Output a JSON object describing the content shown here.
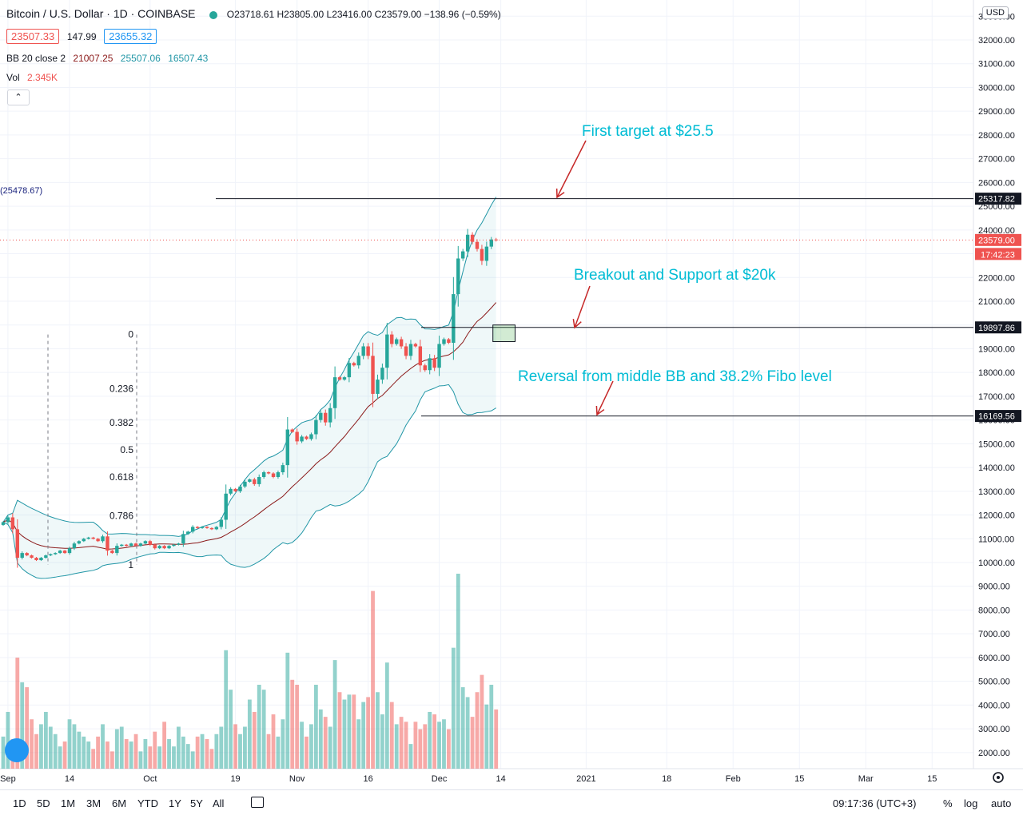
{
  "header": {
    "symbol_title": "Bitcoin / U.S. Dollar · 1D · COINBASE",
    "ohlc": "O23718.61 H23805.00 L23416.00 C23579.00 −138.96 (−0.59%)",
    "bid": "23507.33",
    "spread": "147.99",
    "ask": "23655.32",
    "bb_label": "BB 20 close 2",
    "bb_basis": "21007.25",
    "bb_upper": "25507.06",
    "bb_lower": "16507.43",
    "vol_label": "Vol",
    "vol_value": "2.345K",
    "collapse_icon": "chevron-up-icon",
    "currency_badge": "USD",
    "left_level_label": "(25478.67)"
  },
  "colors": {
    "up": "#26a69a",
    "down": "#ef5350",
    "bb_band": "#2196a6",
    "bb_basis": "#8b1a1a",
    "annotation": "#00bcd4",
    "arrow": "#c62828",
    "axis_text": "#131722"
  },
  "chart_data": {
    "type": "candlestick",
    "title": "Bitcoin / U.S. Dollar · 1D · COINBASE",
    "price_axis": {
      "range": [
        1500,
        33300
      ],
      "ticks": [
        2000,
        3000,
        4000,
        5000,
        6000,
        7000,
        8000,
        9000,
        10000,
        11000,
        12000,
        13000,
        14000,
        15000,
        16000,
        17000,
        18000,
        19000,
        20000,
        21000,
        22000,
        23000,
        24000,
        25000,
        26000,
        27000,
        28000,
        29000,
        30000,
        31000,
        32000,
        33000
      ],
      "tick_labels": [
        "2000.00",
        "3000.00",
        "4000.00",
        "5000.00",
        "6000.00",
        "7000.00",
        "8000.00",
        "9000.00",
        "10000.00",
        "11000.00",
        "12000.00",
        "13000.00",
        "14000.00",
        "15000.00",
        "16000.00",
        "17000.00",
        "18000.00",
        "19000.00",
        "20000.00",
        "21000.00",
        "22000.00",
        "23000.00",
        "24000.00",
        "25000.00",
        "26000.00",
        "27000.00",
        "28000.00",
        "29000.00",
        "30000.00",
        "31000.00",
        "32000.00",
        "33000.00"
      ]
    },
    "time_axis": {
      "labels": [
        "Sep",
        "14",
        "Oct",
        "19",
        "Nov",
        "16",
        "Dec",
        "14",
        "2021",
        "18",
        "Feb",
        "15",
        "Mar",
        "15"
      ],
      "dates": [
        "2020-09-01",
        "2020-09-14",
        "2020-10-01",
        "2020-10-19",
        "2020-11-01",
        "2020-11-16",
        "2020-12-01",
        "2020-12-14",
        "2021-01-01",
        "2021-01-18",
        "2021-02-01",
        "2021-02-15",
        "2021-03-01",
        "2021-03-15"
      ]
    },
    "first_date": "2020-08-31",
    "closes": [
      11700,
      11900,
      11400,
      10200,
      10400,
      10300,
      10200,
      10100,
      10200,
      10300,
      10350,
      10400,
      10500,
      10400,
      10600,
      10800,
      10900,
      11000,
      11050,
      11000,
      10900,
      11100,
      10500,
      10400,
      10700,
      10750,
      10700,
      10800,
      10700,
      10800,
      10900,
      10750,
      10600,
      10700,
      10600,
      10700,
      10750,
      10800,
      11200,
      11300,
      11500,
      11450,
      11500,
      11450,
      11400,
      11500,
      11800,
      12900,
      13100,
      13000,
      13200,
      13400,
      13500,
      13300,
      13600,
      13800,
      13750,
      13600,
      13800,
      14100,
      15600,
      15500,
      15100,
      15300,
      15200,
      15400,
      16000,
      16300,
      15900,
      16500,
      17800,
      17700,
      17800,
      18400,
      18300,
      18700,
      19100,
      18700,
      17100,
      17700,
      18200,
      19600,
      19200,
      19400,
      19100,
      18700,
      19200,
      19100,
      18300,
      18100,
      18600,
      18200,
      19200,
      19400,
      19250,
      21300,
      22800,
      23100,
      23800,
      23500,
      23200,
      22700,
      23300,
      23600,
      23579
    ],
    "volumes": [
      2800,
      3800,
      2700,
      6000,
      5000,
      4800,
      3500,
      2900,
      3300,
      3800,
      3200,
      2900,
      2400,
      2600,
      3500,
      3300,
      3000,
      2800,
      2600,
      2300,
      2800,
      3300,
      2600,
      2200,
      3100,
      3200,
      2700,
      2600,
      2900,
      2200,
      2700,
      2400,
      3000,
      2400,
      3400,
      2700,
      2400,
      3200,
      2800,
      2500,
      2200,
      2800,
      2900,
      2700,
      2300,
      2900,
      3200,
      6300,
      4700,
      3300,
      2900,
      3200,
      4300,
      3800,
      4900,
      4700,
      2900,
      3700,
      2800,
      3500,
      6200,
      5100,
      4900,
      3400,
      2800,
      3300,
      4900,
      3900,
      3600,
      3200,
      5900,
      4600,
      4300,
      4500,
      4500,
      3500,
      4200,
      4400,
      8700,
      4600,
      3700,
      5800,
      4200,
      3300,
      3600,
      3400,
      2500,
      3400,
      3100,
      3300,
      3800,
      3700,
      3400,
      3500,
      3100,
      6400,
      9400,
      4800,
      4400,
      3600,
      4600,
      5300,
      4100,
      4900,
      3900
    ],
    "volume_axis": {
      "range": [
        1500,
        10000
      ]
    },
    "bb": {
      "period": 20,
      "source": "close",
      "mult": 2,
      "basis": 21007.25,
      "upper": 25507.06,
      "lower": 16507.43
    },
    "horizontal_levels": [
      {
        "price": 25317.82,
        "label": "25317.82"
      },
      {
        "price": 19897.86,
        "label": "19897.86"
      },
      {
        "price": 16169.56,
        "label": "16169.56"
      }
    ],
    "last_price": {
      "value": 23579.0,
      "label": "23579.00",
      "countdown": "17:42:23"
    },
    "fibonacci": {
      "levels": [
        "0",
        "0.236",
        "0.382",
        "0.5",
        "0.618",
        "0.786",
        "1"
      ],
      "values": [
        0,
        0.236,
        0.382,
        0.5,
        0.618,
        0.786,
        1
      ],
      "high": 19600,
      "low": 9900
    },
    "annotations": [
      {
        "text": "First target at $25.5"
      },
      {
        "text": "Breakout and Support at $20k"
      },
      {
        "text": "Reversal from middle BB and 38.2% Fibo level"
      }
    ],
    "breakout_box": {
      "from_date": "2020-12-13",
      "to_date": "2020-12-16",
      "low": 19300,
      "high": 20000
    }
  },
  "footer": {
    "timeframes": [
      "1D",
      "5D",
      "1M",
      "3M",
      "6M",
      "YTD",
      "1Y",
      "5Y",
      "All"
    ],
    "calendar_icon": "calendar-range-icon",
    "clock": "09:17:36 (UTC+3)",
    "percent": "%",
    "log": "log",
    "auto": "auto",
    "settings_icon": "gear-icon"
  }
}
